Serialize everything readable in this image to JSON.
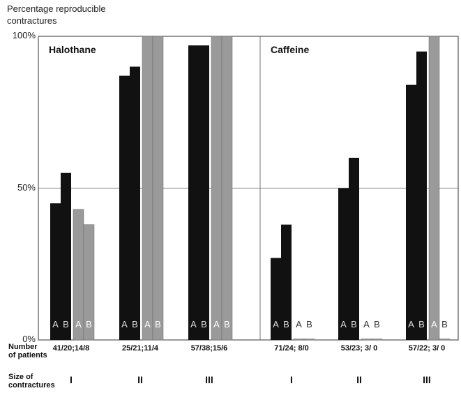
{
  "chart_data": {
    "type": "bar",
    "ylabel": "Percentage reproducible contractures",
    "ylim": [
      0,
      100
    ],
    "yticks": [
      "0%",
      "50%",
      "100%"
    ],
    "grid": true,
    "bar_labels": [
      "A",
      "B"
    ],
    "row_labels": {
      "patients": "Number of patients",
      "size": "Size of contractures"
    },
    "colors": {
      "dark": "#111111",
      "grey": "#9a9a9a",
      "label_dark": "#dddddd",
      "label_light": "#ffffff"
    },
    "panels": [
      {
        "title": "Halothane",
        "groups": [
          {
            "size": "I",
            "patients": "41/20;14/8",
            "dark": [
              45,
              55
            ],
            "grey": [
              43,
              38
            ]
          },
          {
            "size": "II",
            "patients": "25/21;11/4",
            "dark": [
              87,
              90
            ],
            "grey": [
              100,
              100
            ]
          },
          {
            "size": "III",
            "patients": "57/38;15/6",
            "dark": [
              97,
              97
            ],
            "grey": [
              100,
              100
            ]
          }
        ]
      },
      {
        "title": "Caffeine",
        "groups": [
          {
            "size": "I",
            "patients": "71/24; 8/0",
            "dark": [
              27,
              38
            ],
            "grey": [
              0,
              0
            ]
          },
          {
            "size": "II",
            "patients": "53/23; 3/ 0",
            "dark": [
              50,
              60
            ],
            "grey": [
              0,
              0
            ]
          },
          {
            "size": "III",
            "patients": "57/22; 3/ 0",
            "dark": [
              84,
              95
            ],
            "grey": [
              100,
              0
            ]
          }
        ]
      }
    ]
  }
}
